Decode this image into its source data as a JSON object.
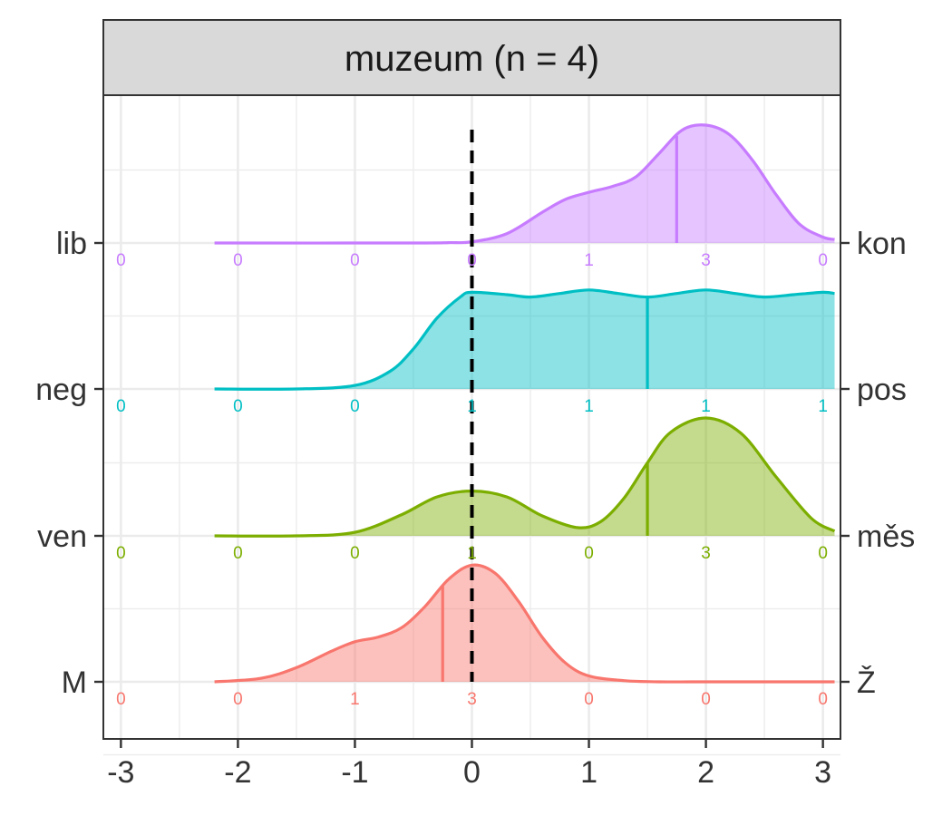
{
  "chart_data": {
    "type": "ridgeline",
    "panel_title": "muzeum (n = 4)",
    "xlim": [
      -3.15,
      3.15
    ],
    "x_ticks": [
      -3,
      -2,
      -1,
      0,
      1,
      2,
      3
    ],
    "x_tick_labels": [
      "-3",
      "-2",
      "-1",
      "0",
      "1",
      "2",
      "3"
    ],
    "count_positions": [
      -3,
      -2,
      -1,
      0,
      1,
      2,
      3
    ],
    "density_x_range": [
      -2.2,
      3.1
    ],
    "reference_line_x": 0,
    "grid": true,
    "series": [
      {
        "left_label": "M",
        "right_label": "Ž",
        "color": "#F8766D",
        "counts": [
          "0",
          "0",
          "1",
          "3",
          "0",
          "0",
          "0"
        ],
        "mean": -0.25,
        "density_x": [
          -2.2,
          -1.8,
          -1.5,
          -1.2,
          -1.0,
          -0.8,
          -0.6,
          -0.4,
          -0.2,
          0.0,
          0.2,
          0.4,
          0.6,
          0.8,
          1.0,
          1.3,
          1.6,
          2.0,
          3.1
        ],
        "density_y": [
          0.0,
          0.03,
          0.12,
          0.26,
          0.34,
          0.38,
          0.46,
          0.64,
          0.87,
          0.99,
          0.92,
          0.68,
          0.38,
          0.16,
          0.05,
          0.01,
          0.0,
          0.0,
          0.0
        ]
      },
      {
        "left_label": "ven",
        "right_label": "měs",
        "color": "#7CAE00",
        "counts": [
          "0",
          "0",
          "0",
          "1",
          "0",
          "3",
          "0"
        ],
        "mean": 1.5,
        "density_x": [
          -2.2,
          -1.5,
          -1.0,
          -0.6,
          -0.3,
          0.0,
          0.3,
          0.6,
          0.9,
          1.1,
          1.3,
          1.5,
          1.7,
          2.0,
          2.3,
          2.6,
          2.9,
          3.1
        ],
        "density_y": [
          0.0,
          0.0,
          0.03,
          0.18,
          0.33,
          0.38,
          0.33,
          0.17,
          0.07,
          0.12,
          0.32,
          0.62,
          0.88,
          1.0,
          0.87,
          0.5,
          0.15,
          0.04
        ]
      },
      {
        "left_label": "neg",
        "right_label": "pos",
        "color": "#00BFC4",
        "counts": [
          "0",
          "0",
          "0",
          "1",
          "1",
          "1",
          "1"
        ],
        "mean": 1.5,
        "density_x": [
          -2.2,
          -1.5,
          -1.0,
          -0.7,
          -0.5,
          -0.3,
          -0.1,
          0.0,
          0.3,
          0.5,
          0.75,
          1.0,
          1.25,
          1.5,
          1.75,
          2.0,
          2.25,
          2.5,
          2.75,
          3.0,
          3.1
        ],
        "density_y": [
          0.0,
          0.0,
          0.03,
          0.15,
          0.34,
          0.6,
          0.78,
          0.82,
          0.8,
          0.78,
          0.81,
          0.84,
          0.81,
          0.78,
          0.81,
          0.84,
          0.81,
          0.78,
          0.8,
          0.82,
          0.81
        ]
      },
      {
        "left_label": "lib",
        "right_label": "kon",
        "color": "#C77CFF",
        "counts": [
          "0",
          "0",
          "0",
          "0",
          "1",
          "3",
          "0"
        ],
        "mean": 1.75,
        "density_x": [
          -2.2,
          -0.5,
          -0.2,
          0.0,
          0.3,
          0.6,
          0.8,
          1.0,
          1.2,
          1.4,
          1.6,
          1.8,
          2.0,
          2.2,
          2.4,
          2.6,
          2.8,
          3.0,
          3.1
        ],
        "density_y": [
          0.0,
          0.0,
          0.003,
          0.01,
          0.08,
          0.26,
          0.37,
          0.43,
          0.48,
          0.56,
          0.76,
          0.96,
          1.0,
          0.92,
          0.7,
          0.41,
          0.16,
          0.05,
          0.03
        ]
      }
    ]
  }
}
